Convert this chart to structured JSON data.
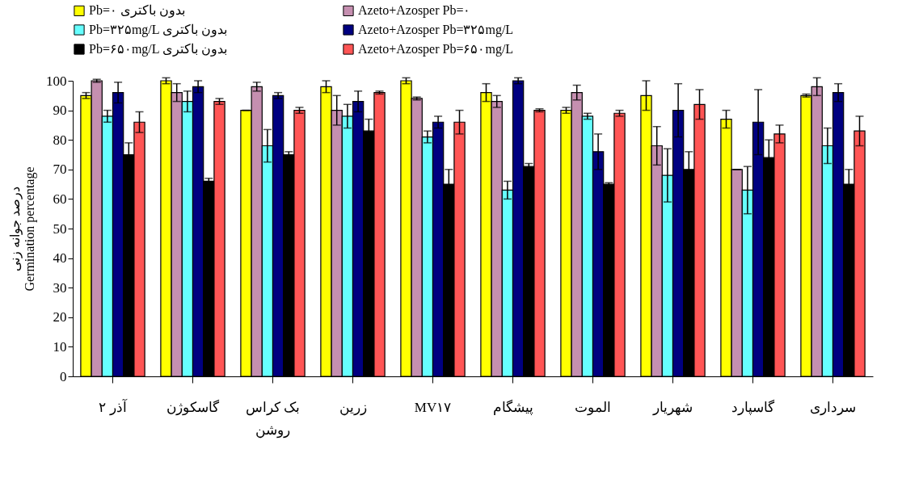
{
  "chart_data": {
    "type": "bar",
    "ylabel": "درصد جوانه زنی\nGermination percentage",
    "categories": [
      "آذر ۲",
      "گاسکوژن",
      "بک کراس روشن",
      "زرین",
      "MV۱۷",
      "پیشگام",
      "الموت",
      "شهریار",
      "گاسپارد",
      "سرداری"
    ],
    "ylim": [
      0,
      100
    ],
    "yticks": [
      0,
      10,
      20,
      30,
      40,
      50,
      60,
      70,
      80,
      90,
      100
    ],
    "grid": false,
    "legend": "top",
    "series": [
      {
        "name": "Pb=۰ بدون باکتری",
        "color": "#ffff00",
        "values": [
          95,
          100,
          90,
          98,
          100,
          96,
          90,
          95,
          87,
          95
        ],
        "errors": [
          1,
          1,
          0,
          2,
          1,
          3,
          1,
          5,
          3,
          0.5
        ]
      },
      {
        "name": "Azeto+Azosper Pb=۰",
        "color": "#c58fb0",
        "values": [
          100,
          96,
          98,
          90,
          94,
          93,
          96,
          78,
          70,
          98
        ],
        "errors": [
          0.5,
          3,
          1.5,
          5,
          0.5,
          2,
          2.5,
          6.5,
          0,
          3
        ]
      },
      {
        "name": "Pb=۳۲۵mg/L بدون باکتری",
        "color": "#66ffff",
        "values": [
          88,
          93,
          78,
          88,
          81,
          63,
          88,
          68,
          63,
          78
        ],
        "errors": [
          2,
          3.5,
          5.5,
          4,
          2,
          3,
          1,
          9,
          8,
          6
        ]
      },
      {
        "name": "Azeto+Azosper Pb=۳۲۵mg/L",
        "color": "#000080",
        "values": [
          96,
          98,
          95,
          93,
          86,
          100,
          76,
          90,
          86,
          96
        ],
        "errors": [
          3.5,
          2,
          1,
          3.5,
          2,
          1,
          6,
          9,
          11,
          3
        ]
      },
      {
        "name": "Pb=۶۵۰mg/L بدون باکتری",
        "color": "#000000",
        "values": [
          75,
          66,
          75,
          83,
          65,
          71,
          65,
          70,
          74,
          65
        ],
        "errors": [
          4,
          1,
          1,
          4,
          5,
          1,
          0.5,
          6,
          6,
          5
        ]
      },
      {
        "name": "Azeto+Azosper Pb=۶۵۰mg/L",
        "color": "#ff5555",
        "values": [
          86,
          93,
          90,
          96,
          86,
          90,
          89,
          92,
          82,
          83
        ],
        "errors": [
          3.5,
          1,
          1,
          0.5,
          4,
          0.5,
          1,
          5,
          3,
          5
        ]
      }
    ]
  }
}
